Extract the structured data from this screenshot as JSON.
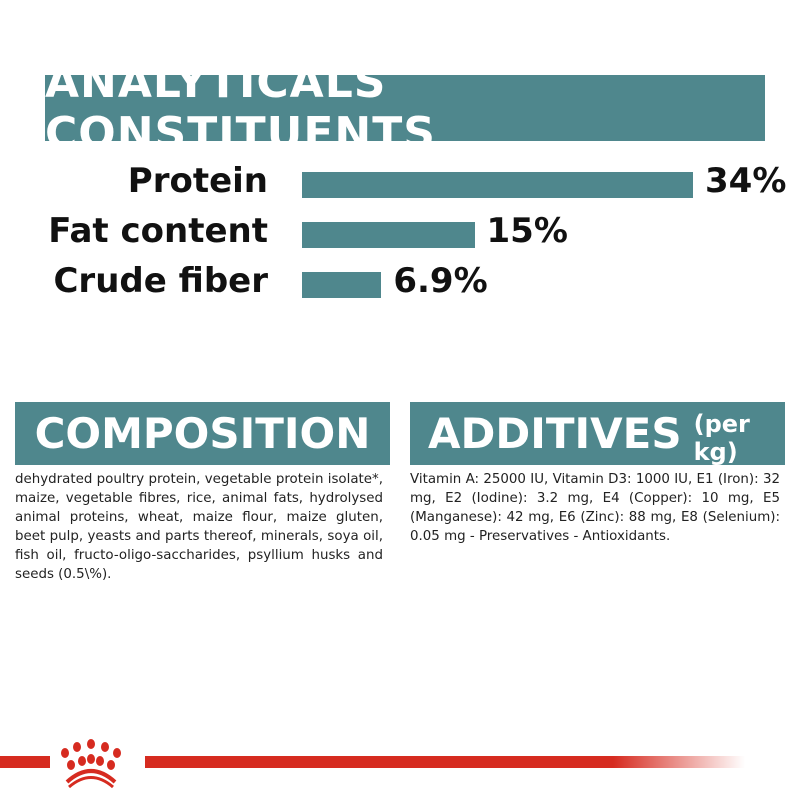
{
  "header": {
    "title": "ANALYTICALS CONSTITUENTS"
  },
  "chart_data": {
    "type": "bar",
    "orientation": "horizontal",
    "categories": [
      "Protein",
      "Fat content",
      "Crude fiber"
    ],
    "values": [
      34,
      15,
      6.9
    ],
    "value_labels": [
      "34%",
      "15%",
      "6.9%"
    ],
    "unit": "%",
    "bar_color": "#4f878d",
    "grid": false
  },
  "composition": {
    "title": "COMPOSITION",
    "text": "dehydrated poultry protein, vegetable protein isolate*, maize, vegetable fibres, rice, animal fats, hydrolysed animal proteins, wheat, maize flour, maize gluten, beet pulp, yeasts and parts thereof, minerals, soya oil, fish oil, fructo-oligo-saccharides, psyllium husks and seeds (0.5\\%)."
  },
  "additives": {
    "title": "ADDITIVES",
    "subtitle": "(per kg)",
    "text": "Vitamin A: 25000 IU, Vitamin D3: 1000 IU, E1 (Iron): 32 mg, E2 (Iodine): 3.2 mg, E4 (Copper): 10 mg, E5 (Manganese): 42 mg, E6 (Zinc): 88 mg, E8 (Selenium): 0.05 mg - Preservatives - Antioxidants."
  },
  "colors": {
    "teal": "#4f878d",
    "brand_red": "#d62b20"
  },
  "footer": {
    "logo_icon": "crown-icon"
  }
}
